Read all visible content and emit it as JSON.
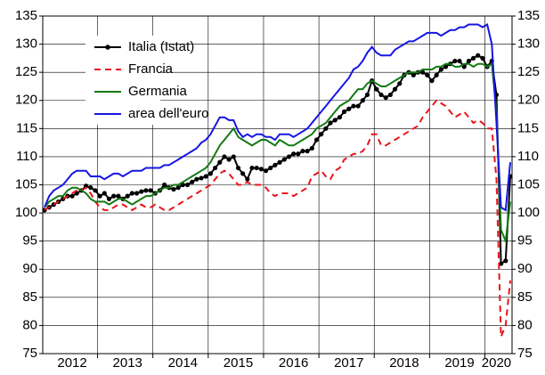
{
  "chart_data": {
    "type": "line",
    "categories": [
      null,
      null,
      null,
      null,
      null,
      null,
      "2012",
      null,
      null,
      null,
      null,
      null,
      null,
      null,
      null,
      null,
      null,
      null,
      "2013",
      null,
      null,
      null,
      null,
      null,
      null,
      null,
      null,
      null,
      null,
      null,
      "2014",
      null,
      null,
      null,
      null,
      null,
      null,
      null,
      null,
      null,
      null,
      null,
      "2015",
      null,
      null,
      null,
      null,
      null,
      null,
      null,
      null,
      null,
      null,
      null,
      "2016",
      null,
      null,
      null,
      null,
      null,
      null,
      null,
      null,
      null,
      null,
      null,
      "2017",
      null,
      null,
      null,
      null,
      null,
      null,
      null,
      null,
      null,
      null,
      null,
      "2018",
      null,
      null,
      null,
      null,
      null,
      null,
      null,
      null,
      null,
      null,
      null,
      "2019",
      null,
      null,
      null,
      null,
      null,
      null,
      null,
      "2020",
      null,
      null,
      null
    ],
    "series": [
      {
        "name": "Italia (Istat)",
        "color": "#000000",
        "line_style": "solid",
        "marker": "circle",
        "values": [
          100.5,
          101,
          101.5,
          102,
          102.5,
          103,
          103,
          103.5,
          104,
          104.8,
          104.5,
          104,
          103,
          103.5,
          102.5,
          103,
          103,
          102.5,
          103,
          103.5,
          103.5,
          103.8,
          104,
          104,
          103.5,
          104,
          105,
          104.5,
          104.2,
          104.5,
          105,
          105,
          105.5,
          106,
          106.2,
          106.5,
          107,
          108,
          109,
          110,
          109.5,
          110,
          108,
          107,
          106,
          108,
          108,
          107.8,
          107.5,
          108,
          108.5,
          109,
          109.5,
          110,
          110.5,
          110.5,
          111,
          111,
          111.5,
          113,
          114,
          115,
          116,
          116.5,
          117,
          118,
          118.5,
          119,
          119,
          120,
          121,
          123.5,
          122,
          121,
          120.5,
          121,
          122,
          123,
          124.5,
          125,
          124.5,
          125,
          125,
          124.5,
          123.5,
          124.5,
          125.5,
          126,
          126.5,
          127,
          127,
          126,
          127,
          127.5,
          128,
          127.5,
          126,
          127,
          121,
          91,
          91.5,
          106.5
        ]
      },
      {
        "name": "Francia",
        "color": "#e8141b",
        "line_style": "dashed",
        "values": [
          100.5,
          101,
          101.5,
          102,
          102.5,
          103,
          103.5,
          104,
          104,
          104.5,
          103.5,
          102,
          101,
          100.5,
          100.5,
          101,
          101.5,
          101.5,
          101,
          100.5,
          101,
          101.5,
          101,
          101,
          101.5,
          101,
          100.5,
          100.5,
          101,
          101.5,
          102,
          102.5,
          103,
          103.5,
          104,
          104.5,
          105,
          106,
          107,
          107.5,
          107,
          106,
          105,
          105,
          105.5,
          105,
          105,
          105,
          104.5,
          103.5,
          103,
          103.5,
          103.5,
          103.5,
          103,
          103.5,
          104,
          104.5,
          106.5,
          107,
          107.5,
          106.5,
          106,
          107.5,
          108,
          109.5,
          110,
          110.5,
          110.5,
          111,
          112,
          114,
          114,
          112,
          112,
          112.5,
          113,
          113.5,
          114,
          114.5,
          115,
          115.5,
          117,
          118,
          119,
          120,
          119.5,
          119,
          118,
          117,
          117.5,
          118,
          117,
          116,
          116.5,
          116,
          115,
          115,
          106,
          78,
          80,
          88
        ]
      },
      {
        "name": "Germania",
        "color": "#137a13",
        "line_style": "solid",
        "values": [
          101,
          102,
          102.5,
          103,
          103,
          104,
          104.5,
          104.5,
          104,
          103.5,
          102.5,
          102,
          102,
          102,
          101.5,
          102,
          102.5,
          102.5,
          102,
          101.5,
          102,
          102.5,
          103,
          103,
          103.5,
          104,
          104.5,
          104.5,
          105,
          105,
          105.5,
          106,
          106.5,
          107,
          107.5,
          108,
          109,
          110.5,
          112,
          113,
          114,
          115,
          113.5,
          113,
          112.5,
          112,
          112.5,
          113,
          113,
          112.5,
          112,
          113,
          112.5,
          112,
          112,
          112.5,
          113,
          113.5,
          114,
          115,
          115.5,
          116,
          117,
          118,
          119,
          119.5,
          120,
          121,
          122,
          122,
          123,
          123.5,
          123,
          122.5,
          122.5,
          123,
          123.5,
          124,
          124.5,
          125,
          125,
          125,
          125.5,
          125.5,
          125.5,
          126,
          126,
          126.5,
          126.5,
          126,
          126,
          126.5,
          126.5,
          126,
          126.5,
          126.5,
          126,
          126.5,
          118,
          97,
          95,
          102
        ]
      },
      {
        "name": "area dell'euro",
        "color": "#1515e6",
        "line_style": "solid",
        "values": [
          101,
          103,
          104,
          104.5,
          105,
          106,
          107,
          107.5,
          107.5,
          107.5,
          106.5,
          106.5,
          106.5,
          106,
          106.5,
          107,
          107,
          106.5,
          107,
          107.5,
          107.5,
          107.5,
          108,
          108,
          108,
          108,
          108.5,
          108.5,
          109,
          109.5,
          110,
          110.5,
          111,
          111.5,
          112.5,
          113,
          114,
          115.5,
          117,
          117,
          116.5,
          116.5,
          114.5,
          113.5,
          114,
          113.5,
          114,
          114,
          113.5,
          113.5,
          113,
          114,
          114,
          114,
          113.5,
          114,
          114.5,
          115,
          116,
          117,
          118,
          119,
          120,
          121,
          122,
          123,
          124,
          125.5,
          126,
          127,
          128.5,
          129.5,
          128.5,
          128,
          128,
          128,
          129,
          129.5,
          130,
          130.5,
          130.5,
          131,
          131.5,
          132,
          132,
          132,
          131.5,
          132,
          132.5,
          132.5,
          133,
          133,
          133.5,
          133.5,
          133.5,
          133,
          133.5,
          130,
          116,
          101,
          100.5,
          109
        ]
      }
    ],
    "ylim": [
      75,
      135
    ],
    "yticks": [
      75,
      80,
      85,
      90,
      95,
      100,
      105,
      110,
      115,
      120,
      125,
      130,
      135
    ],
    "grid": true,
    "legend": "upper left"
  }
}
